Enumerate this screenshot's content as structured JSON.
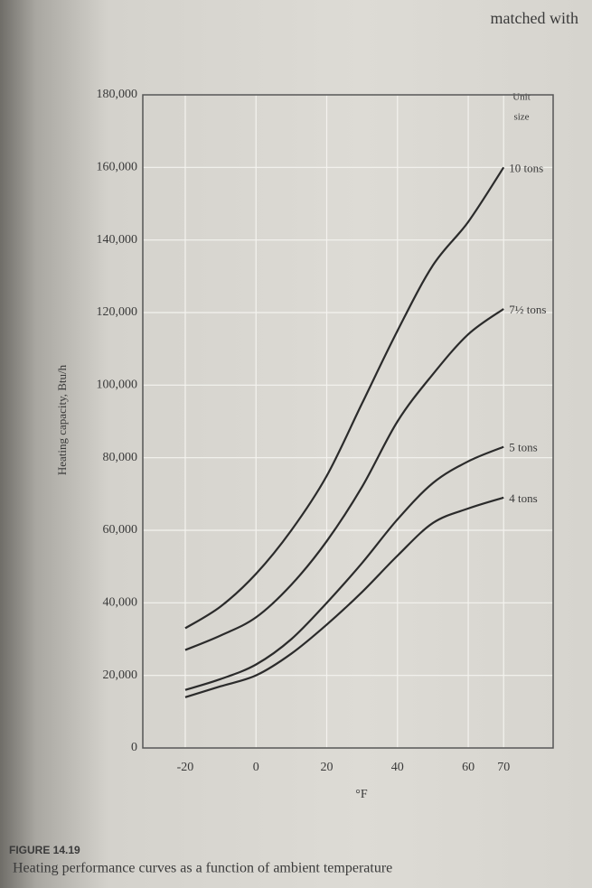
{
  "chart_data": {
    "type": "line",
    "header_text": "matched with",
    "ylabel": "Heating capacity, Btu/h",
    "xlabel": "°F",
    "legend_title": [
      "Unit",
      "size"
    ],
    "figure_label": "FIGURE 14.19",
    "caption": "Heating performance curves as a function of ambient temperature",
    "x": [
      -20,
      -10,
      0,
      10,
      20,
      30,
      40,
      50,
      60,
      70
    ],
    "series": [
      {
        "name": "10 tons",
        "color": "#2b2b2b",
        "values": [
          33000,
          39000,
          48000,
          60000,
          75000,
          95000,
          115000,
          133000,
          145000,
          160000
        ]
      },
      {
        "name": "7½ tons",
        "color": "#2b2b2b",
        "values": [
          27000,
          31000,
          36000,
          45000,
          57000,
          72000,
          90000,
          103000,
          114000,
          121000
        ]
      },
      {
        "name": "5 tons",
        "color": "#2b2b2b",
        "values": [
          16000,
          19000,
          23000,
          30000,
          40000,
          51000,
          63000,
          73000,
          79000,
          83000
        ]
      },
      {
        "name": "4 tons",
        "color": "#2b2b2b",
        "values": [
          14000,
          17000,
          20000,
          26000,
          34000,
          43000,
          53000,
          62000,
          66000,
          69000
        ]
      }
    ],
    "xlim": [
      -32,
      84
    ],
    "xticks": [
      -20,
      0,
      20,
      40,
      60,
      70
    ],
    "ylim": [
      0,
      180000
    ],
    "yticks": [
      0,
      {
        "value": 20000,
        "label": "20,000"
      },
      {
        "value": 40000,
        "label": "40,000"
      },
      {
        "value": 60000,
        "label": "60,000"
      },
      {
        "value": 80000,
        "label": "80,000"
      },
      {
        "value": 100000,
        "label": "100,000"
      },
      {
        "value": 120000,
        "label": "120,000"
      },
      {
        "value": 140000,
        "label": "140,000"
      },
      {
        "value": 160000,
        "label": "160,000"
      },
      {
        "value": 180000,
        "label": "180,000"
      }
    ],
    "grid": true
  }
}
